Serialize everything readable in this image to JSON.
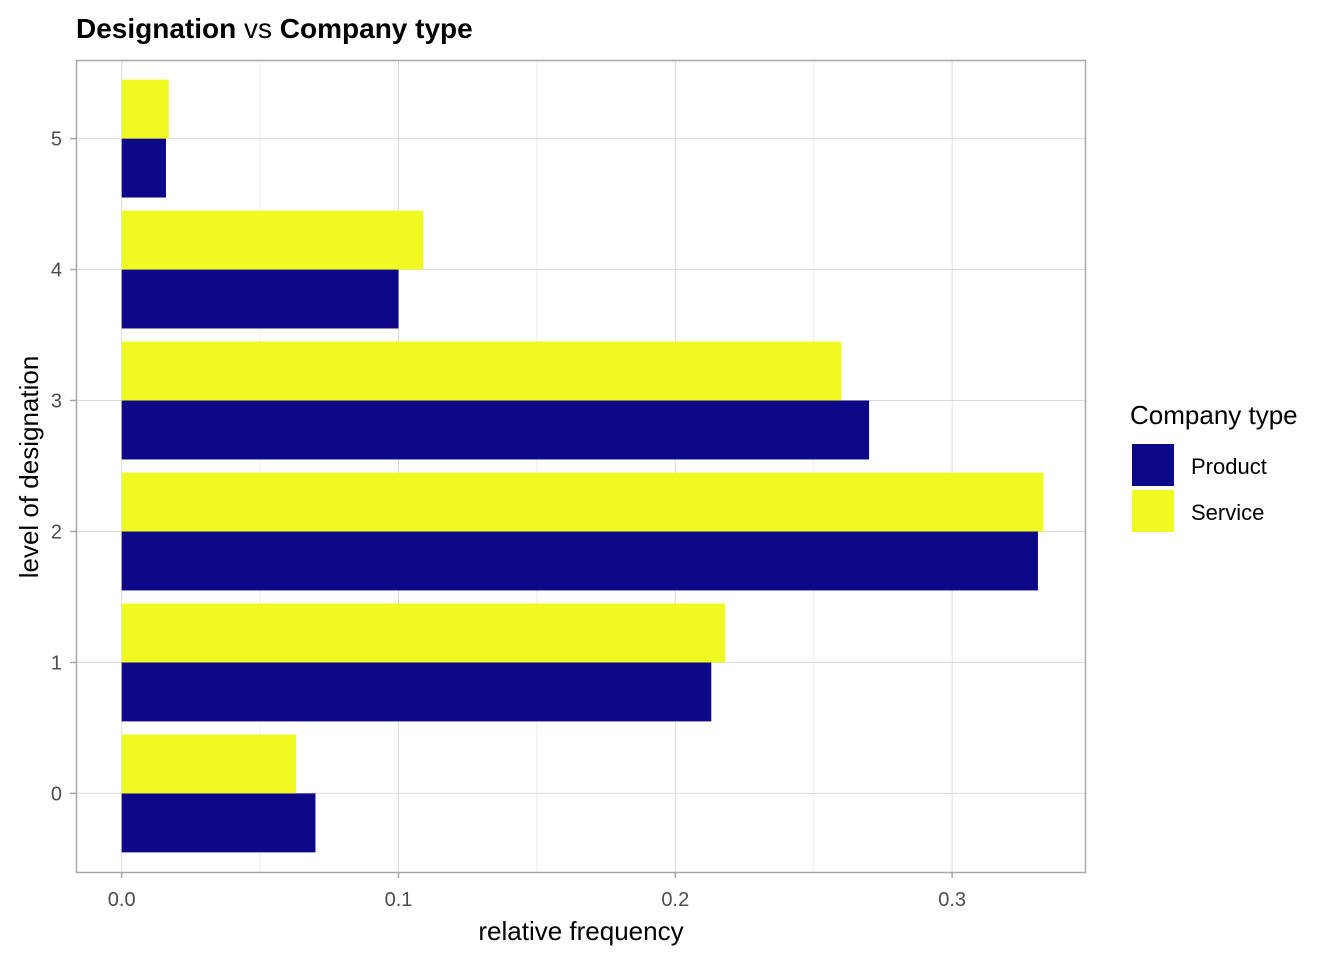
{
  "chart_data": {
    "type": "bar",
    "orientation": "horizontal",
    "title_parts": [
      {
        "text": "Designation",
        "bold": true
      },
      {
        "text": " vs ",
        "bold": false
      },
      {
        "text": "Company type",
        "bold": true
      }
    ],
    "xlabel": "relative frequency",
    "ylabel": "level of designation",
    "categories": [
      "0",
      "1",
      "2",
      "3",
      "4",
      "5"
    ],
    "xlim": [
      -0.0165,
      0.348
    ],
    "x_ticks": [
      0.0,
      0.1,
      0.2,
      0.3
    ],
    "x_tick_labels": [
      "0.0",
      "0.1",
      "0.2",
      "0.3"
    ],
    "grid": true,
    "legend": {
      "title": "Company type",
      "placement": "right"
    },
    "series": [
      {
        "name": "Product",
        "color": "#0d0887",
        "values": [
          0.07,
          0.213,
          0.331,
          0.27,
          0.1,
          0.016
        ]
      },
      {
        "name": "Service",
        "color": "#f0f921",
        "values": [
          0.063,
          0.218,
          0.333,
          0.26,
          0.109,
          0.017
        ]
      }
    ]
  }
}
